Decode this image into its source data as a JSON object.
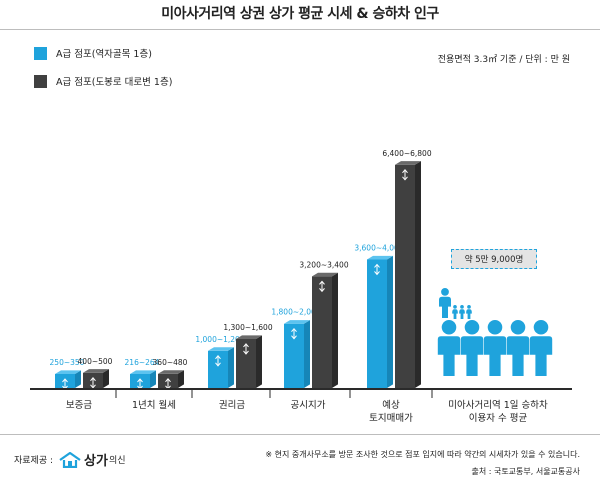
{
  "title": "미아사거리역 상권 상가 평균 시세 & 승하차 인구",
  "unit_note": "전용면적 3.3㎡ 기준 / 단위 : 만 원",
  "colors": {
    "blue": "#1fa3dc",
    "dark": "#404040"
  },
  "chart_data": {
    "type": "bar",
    "categories": [
      "보증금",
      "1년치 월세",
      "권리금",
      "공시지가",
      "예상\n토지매매가"
    ],
    "series": [
      {
        "name": "A급 점포(역자골목 1층)",
        "ranges": [
          [
            250,
            350
          ],
          [
            216,
            264
          ],
          [
            1000,
            1200
          ],
          [
            1800,
            2000
          ],
          [
            3600,
            4000
          ]
        ],
        "labels": [
          "250~350",
          "216~264",
          "1,000~1,200",
          "1,800~2,000",
          "3,600~4,000"
        ]
      },
      {
        "name": "A급 점포(도봉로 대로변 1층)",
        "ranges": [
          [
            400,
            500
          ],
          [
            360,
            480
          ],
          [
            1300,
            1600
          ],
          [
            3200,
            3400
          ],
          [
            6400,
            6800
          ]
        ],
        "labels": [
          "400~500",
          "360~480",
          "1,300~1,600",
          "3,200~3,400",
          "6,400~6,800"
        ]
      }
    ],
    "extra_category": "미아사거리역 1일 승하차\n이용자 수 평균",
    "population_label": "약 5만 9,000명"
  },
  "footer": {
    "source_label": "자료제공 :",
    "brand_name": "상가",
    "brand_sub": "의신",
    "note": "※ 현지 중개사무소를 방문 조사한 것으로 점포 입지에 따라 약간의 시세차가 있을 수 있습니다.",
    "source": "출처 : 국토교통부, 서울교통공사"
  }
}
